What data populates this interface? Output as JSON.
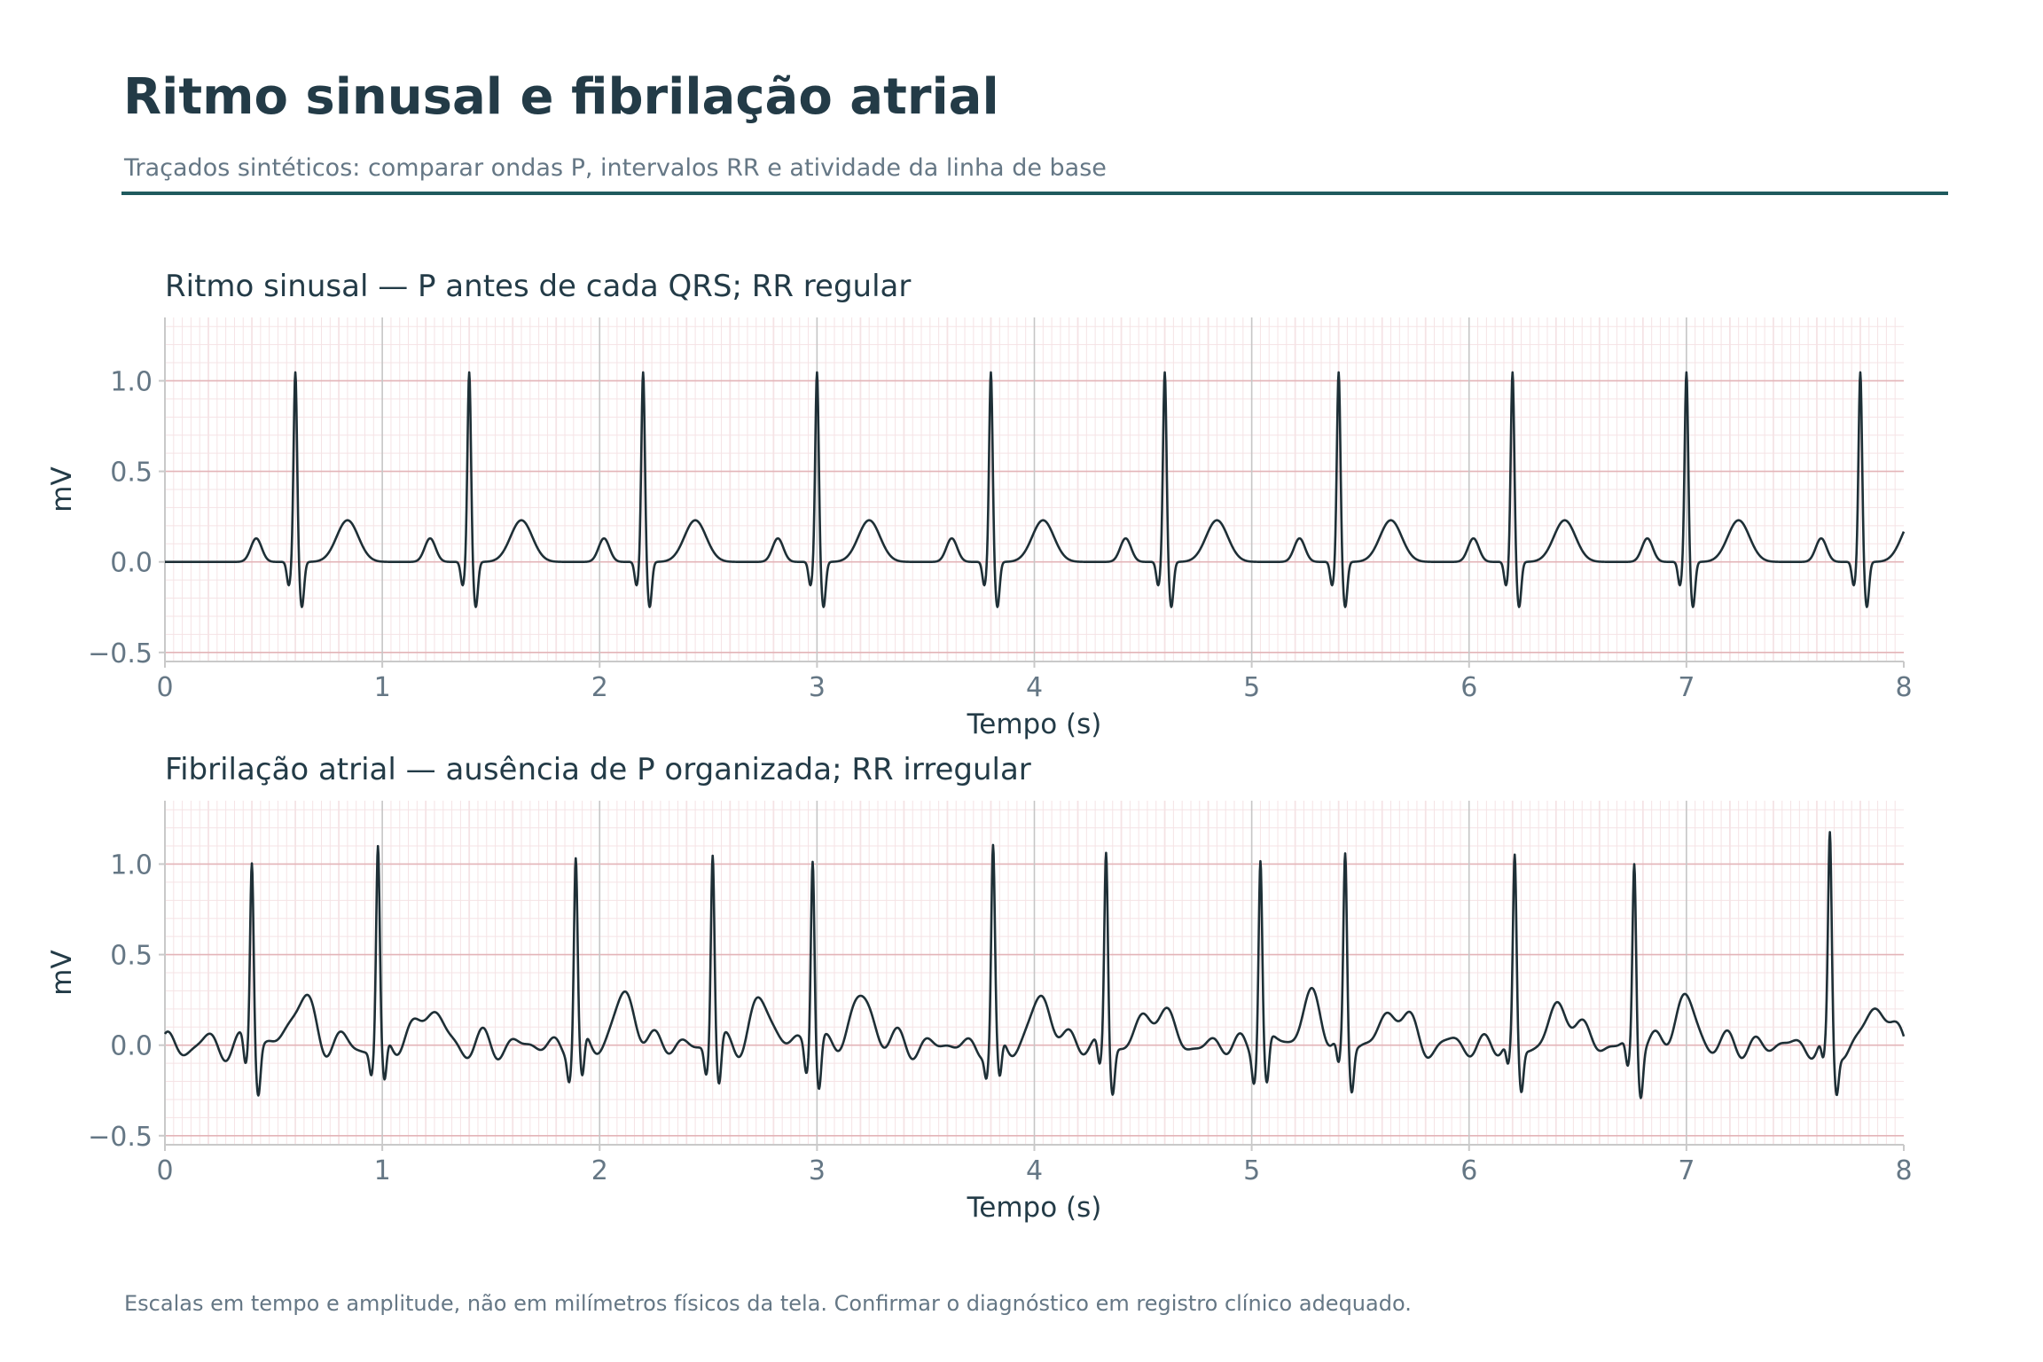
{
  "header": {
    "title": "Ritmo sinusal e fibrilação atrial",
    "subtitle": "Traçados sintéticos: comparar ondas P, intervalos RR e atividade da linha de base"
  },
  "footer": {
    "note": "Escalas em tempo e amplitude, não em milímetros físicos da tela. Confirmar o diagnóstico em registro clínico adequado."
  },
  "colors": {
    "trace": "#1e2f36",
    "grid_major": "#e3b4b8",
    "grid_minor": "#f5e3e5",
    "grid_second": "#c6c6c6",
    "text_axis": "#657785",
    "text_title": "#233b47",
    "accent_rule": "#1f5a5e"
  },
  "chart_data": [
    {
      "type": "line",
      "title": "Ritmo sinusal — P antes de cada QRS; RR regular",
      "xlabel": "Tempo (s)",
      "ylabel": "mV",
      "xlim": [
        0,
        8
      ],
      "ylim": [
        -0.55,
        1.35
      ],
      "xticks": [
        "0",
        "1",
        "2",
        "3",
        "4",
        "5",
        "6",
        "7",
        "8"
      ],
      "yticks": [
        "−0.5",
        "0.0",
        "0.5",
        "1.0"
      ],
      "ytick_values": [
        -0.5,
        0.0,
        0.5,
        1.0
      ],
      "grid": true,
      "series": [
        {
          "r_peaks": [
            0.6,
            1.4,
            2.2,
            3.0,
            3.8,
            4.6,
            5.4,
            6.2,
            7.0,
            7.8
          ],
          "r_amplitude": 1.05,
          "q_amplitude": -0.13,
          "s_amplitude": -0.25,
          "p_wave": {
            "offset": -0.18,
            "amplitude": 0.13
          },
          "t_wave": {
            "offset": 0.24,
            "amplitude": 0.23
          },
          "baseline": 0.0
        }
      ]
    },
    {
      "type": "line",
      "title": "Fibrilação atrial — ausência de P organizada; RR irregular",
      "xlabel": "Tempo (s)",
      "ylabel": "mV",
      "xlim": [
        0,
        8
      ],
      "ylim": [
        -0.55,
        1.35
      ],
      "xticks": [
        "0",
        "1",
        "2",
        "3",
        "4",
        "5",
        "6",
        "7",
        "8"
      ],
      "yticks": [
        "−0.5",
        "0.0",
        "0.5",
        "1.0"
      ],
      "ytick_values": [
        -0.5,
        0.0,
        0.5,
        1.0
      ],
      "grid": true,
      "series": [
        {
          "r_peaks": [
            0.4,
            0.98,
            1.89,
            2.52,
            2.98,
            3.81,
            4.33,
            5.04,
            5.43,
            6.21,
            6.76,
            7.66
          ],
          "r_amplitudes": [
            1.04,
            1.07,
            1.02,
            1.07,
            1.07,
            1.05,
            1.07,
            1.05,
            1.03,
            1.01,
            1.01,
            1.1
          ],
          "t_amplitudes": [
            0.24,
            0.2,
            0.24,
            0.21,
            0.24,
            0.23,
            0.22,
            0.23,
            0.21,
            0.22,
            0.22,
            0.21
          ],
          "q_amplitude": -0.14,
          "s_amplitude": -0.25,
          "fibrillation_amplitude": 0.05,
          "baseline": 0.0
        }
      ]
    }
  ]
}
